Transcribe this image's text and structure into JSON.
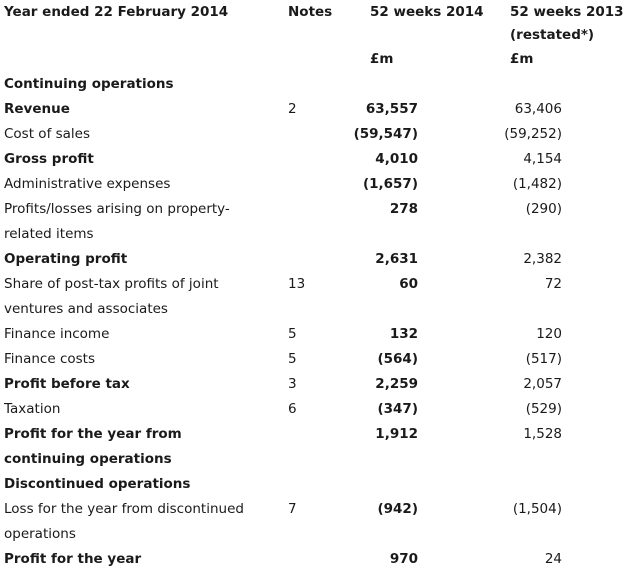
{
  "header": {
    "title": "Year ended 22 February 2014",
    "notes_label": "Notes",
    "col_current": "52 weeks 2014",
    "col_prior": "52 weeks 2013",
    "col_prior_note": "(restated*)",
    "unit_current": "£m",
    "unit_prior": "£m"
  },
  "rows": [
    {
      "label": "Continuing operations",
      "note": "",
      "current": "",
      "prior": "",
      "bold": true
    },
    {
      "label": "Revenue",
      "note": "2",
      "current": "63,557",
      "prior": "63,406",
      "bold": true
    },
    {
      "label": "Cost of sales",
      "note": "",
      "current": "(59,547)",
      "prior": "(59,252)",
      "bold": false
    },
    {
      "label": "Gross profit",
      "note": "",
      "current": "4,010",
      "prior": "4,154",
      "bold": true
    },
    {
      "label": "Administrative expenses",
      "note": "",
      "current": "(1,657)",
      "prior": "(1,482)",
      "bold": false
    },
    {
      "label": "Profits/losses arising on property-related items",
      "note": "",
      "current": "278",
      "prior": "(290)",
      "bold": false
    },
    {
      "label": "Operating profit",
      "note": "",
      "current": "2,631",
      "prior": "2,382",
      "bold": true
    },
    {
      "label": "Share of post-tax profits of joint ventures and associates",
      "note": "13",
      "current": "60",
      "prior": "72",
      "bold": false
    },
    {
      "label": "Finance income",
      "note": "5",
      "current": "132",
      "prior": "120",
      "bold": false
    },
    {
      "label": "Finance costs",
      "note": "5",
      "current": "(564)",
      "prior": "(517)",
      "bold": false
    },
    {
      "label": "Profit before tax",
      "note": "3",
      "current": "2,259",
      "prior": "2,057",
      "bold": true
    },
    {
      "label": "Taxation",
      "note": "6",
      "current": "(347)",
      "prior": "(529)",
      "bold": false
    },
    {
      "label": "Profit for the year from continuing operations",
      "note": "",
      "current": "1,912",
      "prior": "1,528",
      "bold": true
    },
    {
      "label": "Discontinued operations",
      "note": "",
      "current": "",
      "prior": "",
      "bold": true
    },
    {
      "label": "Loss for the year from discontinued operations",
      "note": "7",
      "current": "(942)",
      "prior": "(1,504)",
      "bold": false
    },
    {
      "label": "Profit for the year",
      "note": "",
      "current": "970",
      "prior": "24",
      "bold": true
    }
  ]
}
